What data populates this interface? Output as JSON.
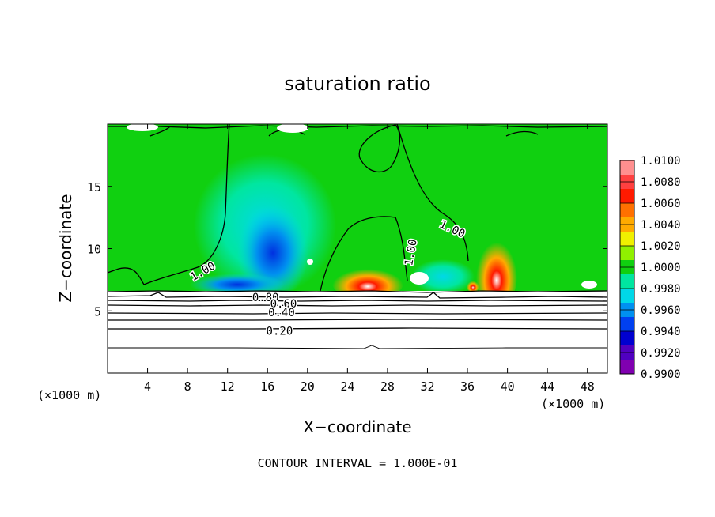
{
  "chart_data": {
    "type": "heatmap",
    "title": "saturation ratio",
    "xlabel": "X−coordinate",
    "ylabel": "Z−coordinate",
    "x_unit_left": "(×1000 m)",
    "x_unit_right": "(×1000 m)",
    "xlim": [
      0,
      50
    ],
    "ylim": [
      0,
      20
    ],
    "x_ticks": [
      4,
      8,
      12,
      16,
      20,
      24,
      28,
      32,
      36,
      40,
      44,
      48
    ],
    "x_tick_labels": [
      "4",
      "8",
      "12",
      "16",
      "20",
      "24",
      "28",
      "32",
      "36",
      "40",
      "44",
      "48"
    ],
    "y_ticks": [
      5,
      10,
      15
    ],
    "y_tick_labels": [
      "5",
      "10",
      "15"
    ],
    "footer": "CONTOUR INTERVAL = 1.000E-01",
    "colorbar": {
      "levels": [
        "1.0100",
        "1.0080",
        "1.0060",
        "1.0040",
        "1.0020",
        "1.0000",
        "0.9980",
        "0.9960",
        "0.9940",
        "0.9920",
        "0.9900"
      ],
      "colors": [
        "#ff8f8f",
        "#ff4040",
        "#ff1a00",
        "#ff7000",
        "#ffaa00",
        "#f0f000",
        "#90f000",
        "#10d010",
        "#00e6a0",
        "#00d8e8",
        "#0090f0",
        "#0040f0",
        "#0000d0",
        "#5000c0",
        "#8000b0"
      ]
    },
    "contour_labels": [
      {
        "text": "1.00",
        "x": 9.5,
        "y": 8.2,
        "angle": -30
      },
      {
        "text": "1.00",
        "x": 30.3,
        "y": 9.7,
        "angle": -80
      },
      {
        "text": "1.00",
        "x": 34.5,
        "y": 11.6,
        "angle": 25
      },
      {
        "text": "0.80",
        "x": 15.8,
        "y": 6.1,
        "angle": 0
      },
      {
        "text": "0.60",
        "x": 17.6,
        "y": 5.6,
        "angle": 0
      },
      {
        "text": "0.40",
        "x": 17.4,
        "y": 4.9,
        "angle": 0
      },
      {
        "text": "0.20",
        "x": 17.2,
        "y": 3.4,
        "angle": 0
      }
    ],
    "grid": false
  }
}
